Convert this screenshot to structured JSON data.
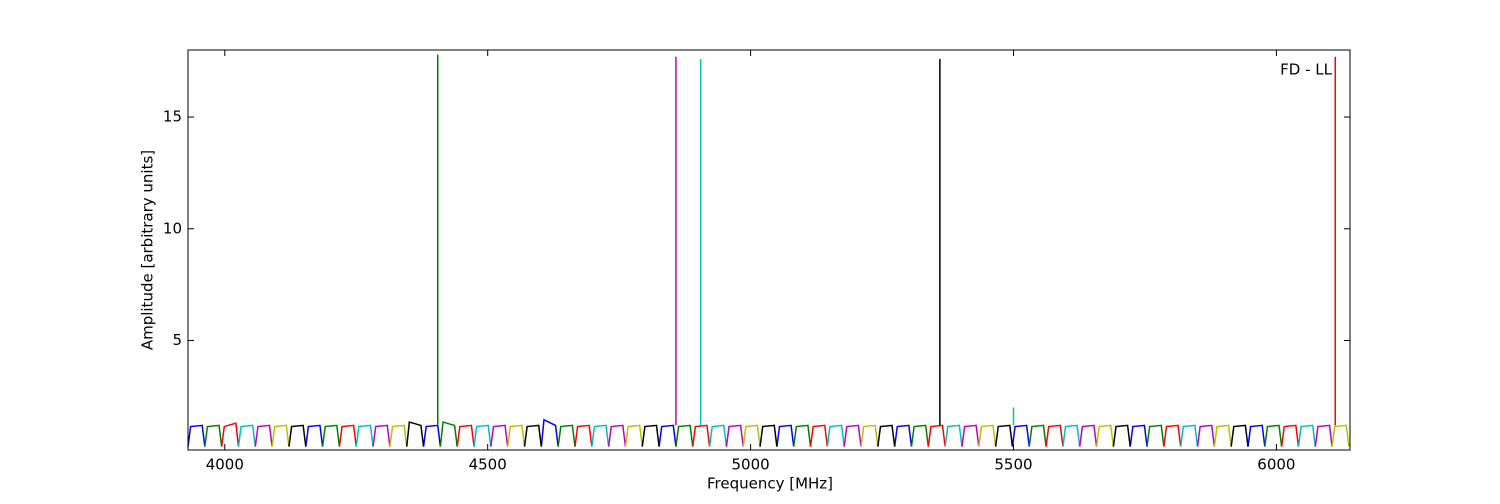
{
  "chart_data": {
    "type": "line",
    "xlabel": "Frequency [MHz]",
    "ylabel": "Amplitude [arbitrary units]",
    "annotation": "FD - LL",
    "xlim": [
      3930,
      6140
    ],
    "ylim": [
      0.1,
      18
    ],
    "xticks": [
      4000,
      4500,
      5000,
      5500,
      6000
    ],
    "yticks": [
      5,
      10,
      15
    ],
    "grid": false,
    "series": [
      {
        "color": "#0000ff",
        "x": [
          3930,
          3935,
          3957,
          3962,
          null,
          4154,
          4159,
          4181,
          4186,
          null,
          4378,
          4383,
          4405,
          4410,
          null,
          4602,
          4607,
          4629,
          4634,
          null,
          4826,
          4831,
          4853,
          4858,
          null,
          5050,
          5055,
          5077,
          5082,
          null,
          5274,
          5279,
          5301,
          5306,
          null,
          5498,
          5503,
          5525,
          5530,
          null,
          5722,
          5727,
          5749,
          5754,
          null,
          5946,
          5951,
          5973,
          5978
        ],
        "values": [
          0.25,
          1.15,
          1.2,
          0.25,
          null,
          0.25,
          1.15,
          1.2,
          0.25,
          null,
          0.25,
          1.15,
          1.2,
          0.25,
          null,
          0.25,
          1.45,
          1.2,
          0.25,
          null,
          0.25,
          1.15,
          1.2,
          0.25,
          null,
          0.25,
          1.15,
          1.2,
          0.25,
          null,
          0.25,
          1.15,
          1.2,
          0.25,
          null,
          0.25,
          1.15,
          1.2,
          0.25,
          null,
          0.25,
          1.15,
          1.2,
          0.25,
          null,
          0.25,
          1.15,
          1.2,
          0.25
        ]
      },
      {
        "color": "#008000",
        "x": [
          3962,
          3967,
          3989,
          3994,
          null,
          4186,
          4191,
          4213,
          4218,
          null,
          4410,
          4415,
          4437,
          4442,
          null,
          4634,
          4639,
          4661,
          4666,
          null,
          4858,
          4863,
          4885,
          4890,
          null,
          5082,
          5087,
          5109,
          5114,
          null,
          5306,
          5311,
          5333,
          5338,
          null,
          5530,
          5535,
          5557,
          5562,
          null,
          5754,
          5759,
          5781,
          5786,
          null,
          5978,
          5983,
          6005,
          6010,
          null,
          4405,
          4405
        ],
        "values": [
          0.25,
          1.15,
          1.2,
          0.25,
          null,
          0.25,
          1.15,
          1.2,
          0.25,
          null,
          0.25,
          1.35,
          1.2,
          0.25,
          null,
          0.25,
          1.15,
          1.2,
          0.25,
          null,
          0.25,
          1.15,
          1.2,
          0.25,
          null,
          0.25,
          1.15,
          1.2,
          0.25,
          null,
          0.25,
          1.15,
          1.2,
          0.25,
          null,
          0.25,
          1.15,
          1.2,
          0.25,
          null,
          0.25,
          1.15,
          1.2,
          0.25,
          null,
          0.25,
          1.15,
          1.2,
          0.25,
          null,
          1.2,
          17.8
        ]
      },
      {
        "color": "#ff0000",
        "x": [
          3994,
          3999,
          4021,
          4026,
          null,
          4218,
          4223,
          4245,
          4250,
          null,
          4442,
          4447,
          4469,
          4474,
          null,
          4666,
          4671,
          4693,
          4698,
          null,
          4890,
          4895,
          4917,
          4922,
          null,
          5114,
          5119,
          5141,
          5146,
          null,
          5338,
          5343,
          5365,
          5370,
          null,
          5562,
          5567,
          5589,
          5594,
          null,
          5786,
          5791,
          5813,
          5818,
          null,
          6010,
          6015,
          6037,
          6042,
          null,
          6112,
          6112
        ],
        "values": [
          0.25,
          1.15,
          1.3,
          0.25,
          null,
          0.25,
          1.15,
          1.2,
          0.25,
          null,
          0.25,
          1.15,
          1.2,
          0.25,
          null,
          0.25,
          1.15,
          1.2,
          0.25,
          null,
          0.25,
          1.15,
          1.2,
          0.25,
          null,
          0.25,
          1.15,
          1.2,
          0.25,
          null,
          0.25,
          1.15,
          1.2,
          0.25,
          null,
          0.25,
          1.15,
          1.2,
          0.25,
          null,
          0.25,
          1.15,
          1.2,
          0.25,
          null,
          0.25,
          1.15,
          1.2,
          0.25,
          null,
          1.2,
          17.7
        ]
      },
      {
        "color": "#00bfbf",
        "x": [
          4026,
          4031,
          4053,
          4058,
          null,
          4250,
          4255,
          4277,
          4282,
          null,
          4474,
          4479,
          4501,
          4506,
          null,
          4698,
          4703,
          4725,
          4730,
          null,
          4922,
          4927,
          4949,
          4954,
          null,
          5146,
          5151,
          5173,
          5178,
          null,
          5370,
          5375,
          5397,
          5402,
          null,
          5594,
          5599,
          5621,
          5626,
          null,
          5818,
          5823,
          5845,
          5850,
          null,
          6042,
          6047,
          6069,
          6074,
          null,
          4905,
          4905,
          null,
          5500,
          5500
        ],
        "values": [
          0.25,
          1.15,
          1.2,
          0.25,
          null,
          0.25,
          1.15,
          1.2,
          0.25,
          null,
          0.25,
          1.15,
          1.2,
          0.25,
          null,
          0.25,
          1.15,
          1.2,
          0.25,
          null,
          0.25,
          1.15,
          1.2,
          0.25,
          null,
          0.25,
          1.15,
          1.2,
          0.25,
          null,
          0.25,
          1.15,
          1.2,
          0.25,
          null,
          0.25,
          1.15,
          1.2,
          0.25,
          null,
          0.25,
          1.15,
          1.2,
          0.25,
          null,
          0.25,
          1.15,
          1.2,
          0.25,
          null,
          1.2,
          17.6,
          null,
          1.2,
          2.0
        ]
      },
      {
        "color": "#bf00bf",
        "x": [
          4058,
          4063,
          4085,
          4090,
          null,
          4282,
          4287,
          4309,
          4314,
          null,
          4506,
          4511,
          4533,
          4538,
          null,
          4730,
          4735,
          4757,
          4762,
          null,
          4954,
          4959,
          4981,
          4986,
          null,
          5178,
          5183,
          5205,
          5210,
          null,
          5402,
          5407,
          5429,
          5434,
          null,
          5626,
          5631,
          5653,
          5658,
          null,
          5850,
          5855,
          5877,
          5882,
          null,
          6074,
          6079,
          6101,
          6106,
          null,
          4858,
          4858
        ],
        "values": [
          0.25,
          1.15,
          1.2,
          0.25,
          null,
          0.25,
          1.15,
          1.2,
          0.25,
          null,
          0.25,
          1.15,
          1.2,
          0.25,
          null,
          0.25,
          1.15,
          1.2,
          0.25,
          null,
          0.25,
          1.15,
          1.2,
          0.25,
          null,
          0.25,
          1.15,
          1.2,
          0.25,
          null,
          0.25,
          1.15,
          1.2,
          0.25,
          null,
          0.25,
          1.15,
          1.2,
          0.25,
          null,
          0.25,
          1.15,
          1.2,
          0.25,
          null,
          0.25,
          1.15,
          1.2,
          0.25,
          null,
          1.2,
          17.7
        ]
      },
      {
        "color": "#bfbf00",
        "x": [
          4090,
          4095,
          4117,
          4122,
          null,
          4314,
          4319,
          4341,
          4346,
          null,
          4538,
          4543,
          4565,
          4570,
          null,
          4762,
          4767,
          4789,
          4794,
          null,
          4986,
          4991,
          5013,
          5018,
          null,
          5210,
          5215,
          5237,
          5242,
          null,
          5434,
          5439,
          5461,
          5466,
          null,
          5658,
          5663,
          5685,
          5690,
          null,
          5882,
          5887,
          5909,
          5914,
          null,
          6106,
          6111,
          6133,
          6138
        ],
        "values": [
          0.25,
          1.15,
          1.2,
          0.25,
          null,
          0.25,
          1.15,
          1.2,
          0.25,
          null,
          0.25,
          1.15,
          1.2,
          0.25,
          null,
          0.25,
          1.15,
          1.2,
          0.25,
          null,
          0.25,
          1.15,
          1.2,
          0.25,
          null,
          0.25,
          1.15,
          1.2,
          0.25,
          null,
          0.25,
          1.15,
          1.2,
          0.25,
          null,
          0.25,
          1.15,
          1.2,
          0.25,
          null,
          0.25,
          1.15,
          1.2,
          0.25,
          null,
          0.25,
          1.15,
          1.2,
          0.25
        ]
      },
      {
        "color": "#000000",
        "x": [
          4122,
          4127,
          4149,
          4154,
          null,
          4346,
          4351,
          4373,
          4378,
          null,
          4570,
          4575,
          4597,
          4602,
          null,
          4794,
          4799,
          4821,
          4826,
          null,
          5018,
          5023,
          5045,
          5050,
          null,
          5242,
          5247,
          5269,
          5274,
          null,
          5466,
          5471,
          5493,
          5498,
          null,
          5690,
          5695,
          5717,
          5722,
          null,
          5914,
          5919,
          5941,
          5946,
          null,
          5360,
          5360
        ],
        "values": [
          0.25,
          1.15,
          1.2,
          0.25,
          null,
          0.25,
          1.35,
          1.2,
          0.25,
          null,
          0.25,
          1.15,
          1.2,
          0.25,
          null,
          0.25,
          1.15,
          1.2,
          0.25,
          null,
          0.25,
          1.15,
          1.2,
          0.25,
          null,
          0.25,
          1.15,
          1.2,
          0.25,
          null,
          0.25,
          1.15,
          1.2,
          0.25,
          null,
          0.25,
          1.15,
          1.2,
          0.25,
          null,
          0.25,
          1.15,
          1.2,
          0.25,
          null,
          1.2,
          17.6
        ]
      }
    ]
  }
}
